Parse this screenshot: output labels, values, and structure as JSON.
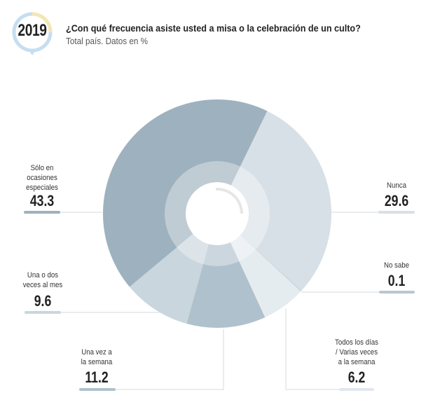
{
  "header": {
    "year": "2019",
    "title": "¿Con qué frecuencia asiste usted a misa o la celebración de un culto?",
    "subtitle": "Total país. Datos en %"
  },
  "chart_data": {
    "type": "pie",
    "title": "¿Con qué frecuencia asiste usted a misa o la celebración de un culto?",
    "subtitle": "Total país. Datos en %",
    "start_angle_deg": 26,
    "slices": [
      {
        "label": "Nunca",
        "value": 29.6,
        "color": "#d7e0e6"
      },
      {
        "label": "No sabe",
        "value": 0.1,
        "color": "#b9c7d1"
      },
      {
        "label": "Todos los días / Varias veces a la semana",
        "value": 6.2,
        "color": "#e5ecf0"
      },
      {
        "label": "Una vez a la semana",
        "value": 11.2,
        "color": "#afc1cc"
      },
      {
        "label": "Una o dos veces al mes",
        "value": 9.6,
        "color": "#c9d6de"
      },
      {
        "label": "Sólo en ocasiones especiales",
        "value": 43.3,
        "color": "#9eb1be"
      }
    ],
    "labels": {
      "nunca": {
        "text": [
          "Nunca"
        ],
        "value": "29.6"
      },
      "nosabe": {
        "text": [
          "No sabe"
        ],
        "value": "0.1"
      },
      "todos": {
        "text": [
          "Todos los días",
          "/ Varias veces",
          "a la semana"
        ],
        "value": "6.2"
      },
      "unavez": {
        "text": [
          "Una vez a",
          "la semana"
        ],
        "value": "11.2"
      },
      "unados": {
        "text": [
          "Una o dos",
          "veces al  mes"
        ],
        "value": "9.6"
      },
      "solo": {
        "text": [
          "Sólo en",
          "ocasiones",
          "especiales"
        ],
        "value": "43.3"
      }
    }
  }
}
